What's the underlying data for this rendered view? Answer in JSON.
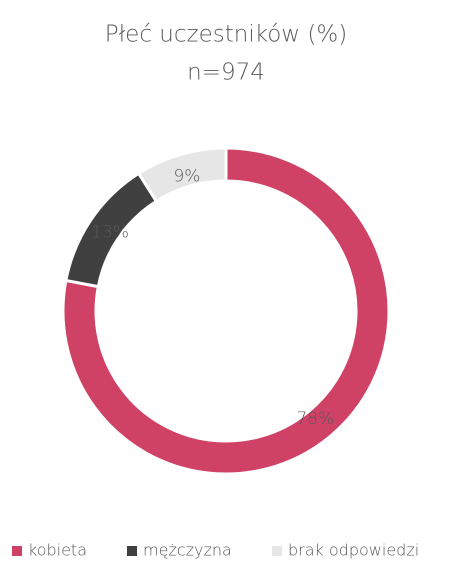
{
  "chart_data": {
    "type": "donut",
    "title": "Płeć uczestników (%)",
    "subtitle": "n=974",
    "categories": [
      "kobieta",
      "mężczyzna",
      "brak odpowiedzi"
    ],
    "values": [
      78,
      13,
      9
    ],
    "value_labels": [
      "78%",
      "13%",
      "9%"
    ],
    "colors": [
      "#cf4266",
      "#404040",
      "#e6e6e6"
    ],
    "legend": "bottom"
  }
}
